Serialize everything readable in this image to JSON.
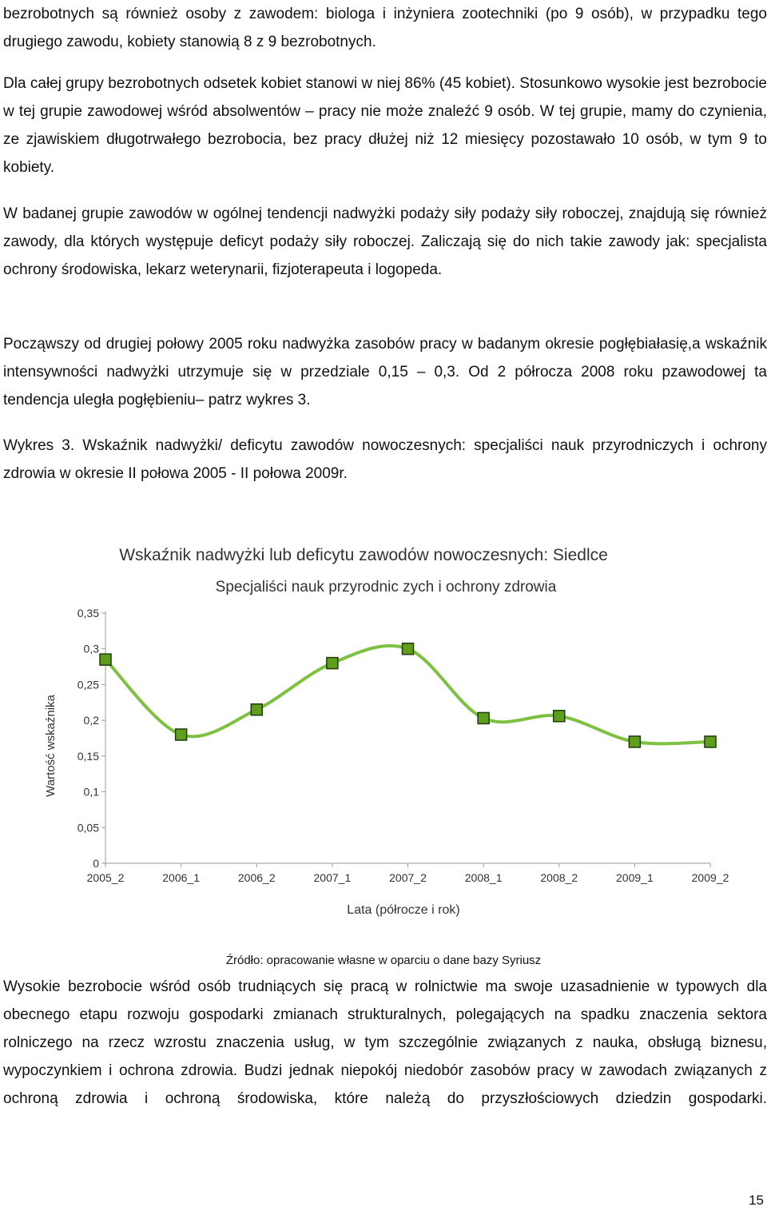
{
  "paragraphs": {
    "p1": "bezrobotnych są również osoby z zawodem: biologa i inżyniera zootechniki (po 9 osób), w przypadku tego drugiego zawodu, kobiety stanowią 8 z 9 bezrobotnych.",
    "p2": "Dla całej grupy bezrobotnych odsetek kobiet stanowi w niej 86% (45 kobiet). Stosunkowo wysokie jest bezrobocie w tej grupie zawodowej wśród absolwentów – pracy nie może znaleźć 9 osób. W tej grupie, mamy do czynienia, ze zjawiskiem długotrwałego bezrobocia, bez pracy dłużej niż 12 miesięcy pozostawało 10 osób, w tym 9 to kobiety.",
    "p3": "W badanej grupie zawodów w ogólnej tendencji nadwyżki podaży siły podaży siły roboczej, znajdują się również zawody, dla których występuje deficyt podaży siły roboczej. Zaliczają się do nich takie zawody jak: specjalista ochrony środowiska, lekarz weterynarii, fizjoterapeuta i logopeda.",
    "p4": "Począwszy od drugiej połowy 2005 roku nadwyżka  zasobów pracy w badanym okresie pogłębiałasię,a wskaźnik intensywności nadwyżki utrzymuje się w przedziale 0,15 – 0,3. Od 2 półrocza 2008 roku pzawodowej ta tendencja uległa pogłębieniu– patrz wykres 3.",
    "p5": "Wykres 3. Wskaźnik nadwyżki/ deficytu zawodów nowoczesnych: specjaliści nauk przyrodniczych i ochrony zdrowia w okresie II połowa 2005 - II połowa 2009r.",
    "p6": "Wysokie bezrobocie wśród osób trudniących się pracą w rolnictwie ma swoje uzasadnienie w typowych dla obecnego etapu rozwoju gospodarki zmianach strukturalnych, polegających na spadku znaczenia sektora rolniczego na rzecz wzrostu znaczenia usług, w tym szczególnie związanych z nauka, obsługą biznesu, wypoczynkiem i ochrona zdrowia. Budzi jednak niepokój niedobór zasobów pracy w zawodach związanych z ochroną zdrowia i ochroną środowiska, które należą do przyszłościowych dziedzin gospodarki."
  },
  "source_note": "Źródło: opracowanie własne w oparciu o dane bazy Syriusz",
  "page_number": "15",
  "chart_data": {
    "type": "line",
    "title": "Wskaźnik nadwyżki lub deficytu zawodów nowoczesnych: Siedlce",
    "subtitle": "Specjaliści nauk przyrodnic zych i ochrony zdrowia",
    "xlabel": "Lata (półrocze i rok)",
    "ylabel": "Wartość wskaźnika",
    "categories": [
      "2005_2",
      "2006_1",
      "2006_2",
      "2007_1",
      "2007_2",
      "2008_1",
      "2008_2",
      "2009_1",
      "2009_2"
    ],
    "values": [
      0.285,
      0.18,
      0.215,
      0.28,
      0.3,
      0.203,
      0.206,
      0.17,
      0.17
    ],
    "ylim": [
      0,
      0.35
    ],
    "yticks": [
      "0",
      "0,05",
      "0,1",
      "0,15",
      "0,2",
      "0,25",
      "0,3",
      "0,35"
    ],
    "smooth": true,
    "grid": false,
    "colors": {
      "line": "#7dc142",
      "marker_fill": "#5e9e1a",
      "marker_stroke": "#1f3a0a",
      "axis": "#999999"
    }
  }
}
